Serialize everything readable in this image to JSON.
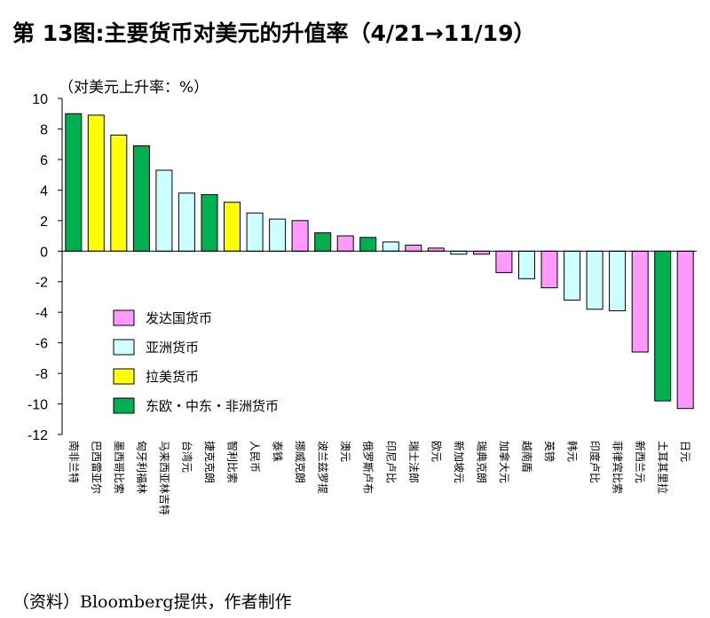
{
  "header": {
    "title": "第 13图:主要货币对美元的升值率（4/21→11/19）",
    "unit_label": "（对美元上升率：%）"
  },
  "footer": {
    "source": "（资料）Bloomberg提供，作者制作"
  },
  "chart_data": {
    "type": "bar",
    "title": "第 13图:主要货币对美元的升值率（4/21→11/19）",
    "ylabel": "（对美元上升率：%）",
    "xlabel": "",
    "ylim": [
      -12,
      10
    ],
    "yticks": [
      10,
      8,
      6,
      4,
      2,
      0,
      -2,
      -4,
      -6,
      -8,
      -10,
      -12
    ],
    "grid": false,
    "legend_position": "lower-left",
    "groups": [
      {
        "key": "developed",
        "name": "发达国货币",
        "color": "#ff99ff"
      },
      {
        "key": "asia",
        "name": "亚洲货币",
        "color": "#ccffff"
      },
      {
        "key": "latam",
        "name": "拉美货币",
        "color": "#ffff00"
      },
      {
        "key": "emea",
        "name": "东欧・中东・非洲货币",
        "color": "#00b050"
      }
    ],
    "categories": [
      "南非兰特",
      "巴西雷亚尔",
      "墨西哥比索",
      "匈牙利福林",
      "马来西亚林吉特",
      "台湾元",
      "捷克克朗",
      "智利比索",
      "人民币",
      "泰铢",
      "挪威克朗",
      "波兰兹罗提",
      "澳元",
      "俄罗斯卢布",
      "印尼卢比",
      "瑞士法郎",
      "欧元",
      "新加坡元",
      "瑞典克朗",
      "加拿大元",
      "越南盾",
      "英镑",
      "韩元",
      "印度卢比",
      "菲律宾比索",
      "新西兰元",
      "土耳其里拉",
      "日元"
    ],
    "values": [
      9.0,
      8.9,
      7.6,
      6.9,
      5.3,
      3.8,
      3.7,
      3.2,
      2.5,
      2.1,
      2.0,
      1.2,
      1.0,
      0.9,
      0.6,
      0.4,
      0.2,
      -0.2,
      -0.2,
      -1.4,
      -1.8,
      -2.4,
      -3.2,
      -3.8,
      -3.9,
      -6.6,
      -9.8,
      -10.3
    ],
    "bar_groups": [
      "emea",
      "latam",
      "latam",
      "emea",
      "asia",
      "asia",
      "emea",
      "latam",
      "asia",
      "asia",
      "developed",
      "emea",
      "developed",
      "emea",
      "asia",
      "developed",
      "developed",
      "asia",
      "developed",
      "developed",
      "asia",
      "developed",
      "asia",
      "asia",
      "asia",
      "developed",
      "emea",
      "developed"
    ]
  }
}
